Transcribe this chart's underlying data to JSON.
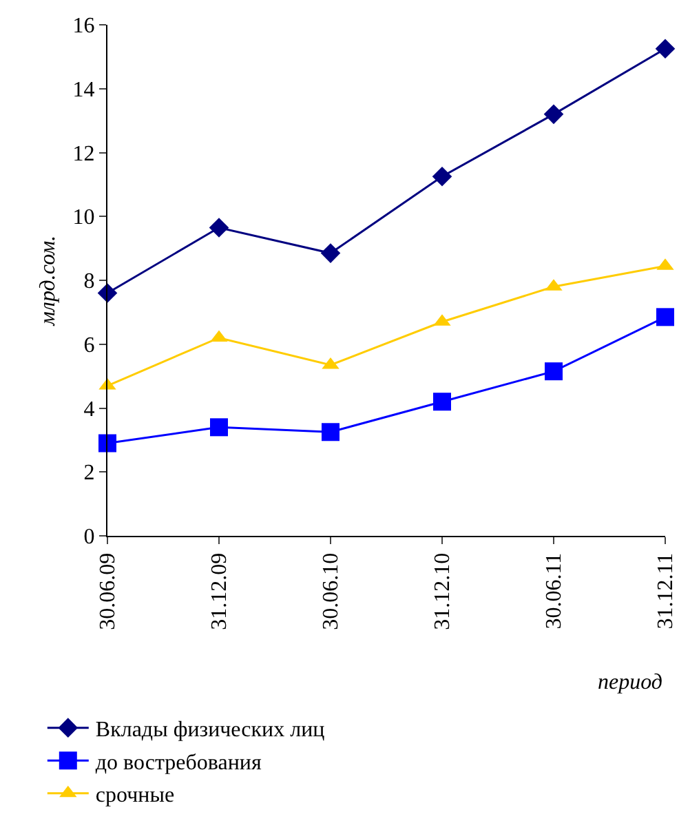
{
  "chart_data": {
    "type": "line",
    "xlabel": "период",
    "ylabel": "млрд.сом.",
    "categories": [
      "30.06.09",
      "31.12.09",
      "30.06.10",
      "31.12.10",
      "30.06.11",
      "31.12.11"
    ],
    "series": [
      {
        "name": "Вклады физических лиц",
        "color": "#000080",
        "marker": "diamond",
        "values": [
          7.6,
          9.65,
          8.85,
          11.25,
          13.2,
          15.25
        ]
      },
      {
        "name": "до востребования",
        "color": "#0000ff",
        "marker": "square",
        "values": [
          2.9,
          3.4,
          3.25,
          4.2,
          5.15,
          6.85
        ]
      },
      {
        "name": "срочные",
        "color": "#ffcc00",
        "marker": "triangle",
        "values": [
          4.7,
          6.2,
          5.35,
          6.7,
          7.8,
          8.45
        ]
      }
    ],
    "ylim": [
      0,
      16
    ],
    "yticks": [
      0,
      2,
      4,
      6,
      8,
      10,
      12,
      14,
      16
    ],
    "grid": false,
    "legend": "bottom",
    "line_style": "solid"
  }
}
